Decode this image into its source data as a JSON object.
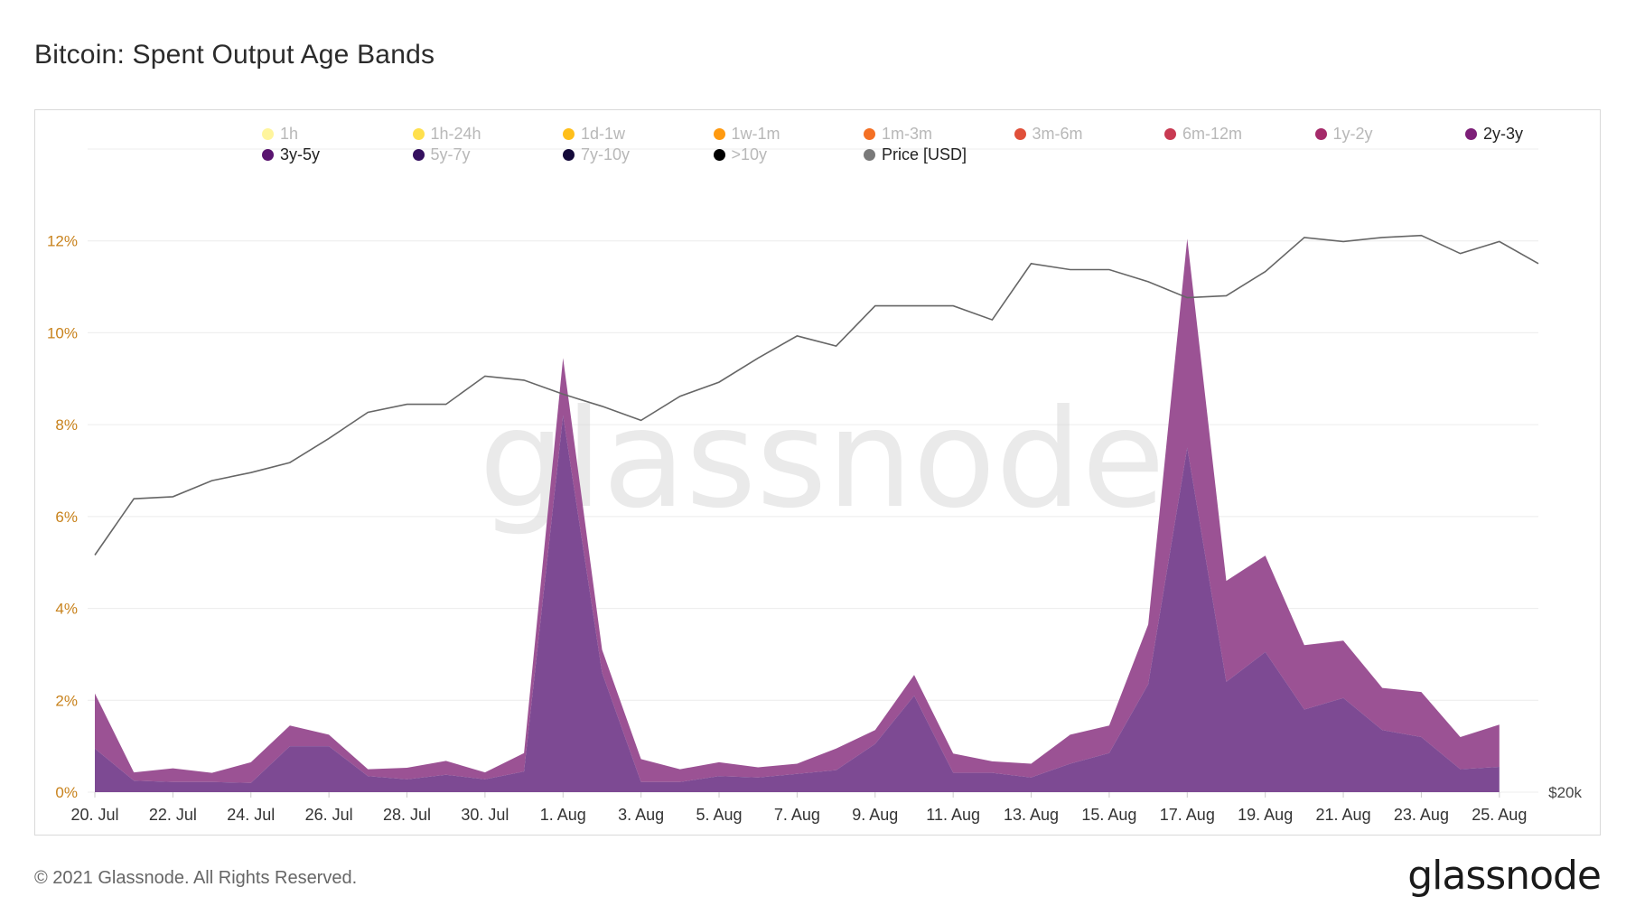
{
  "title": "Bitcoin: Spent Output Age Bands",
  "footer": "© 2021 Glassnode. All Rights Reserved.",
  "brand": "glassnode",
  "watermark": "glassnode",
  "legend": [
    {
      "label": "1h",
      "color": "#fff59d",
      "active": false
    },
    {
      "label": "1h-24h",
      "color": "#ffe04d",
      "active": false
    },
    {
      "label": "1d-1w",
      "color": "#ffbf1a",
      "active": false
    },
    {
      "label": "1w-1m",
      "color": "#ff9a10",
      "active": false
    },
    {
      "label": "1m-3m",
      "color": "#f47024",
      "active": false
    },
    {
      "label": "3m-6m",
      "color": "#e0503a",
      "active": false
    },
    {
      "label": "6m-12m",
      "color": "#c83a52",
      "active": false
    },
    {
      "label": "1y-2y",
      "color": "#a52a6a",
      "active": false
    },
    {
      "label": "2y-3y",
      "color": "#7d1f78",
      "active": true
    },
    {
      "label": "3y-5y",
      "color": "#5a1470",
      "active": true
    },
    {
      "label": "5y-7y",
      "color": "#35105f",
      "active": false
    },
    {
      "label": "7y-10y",
      "color": "#150a3a",
      "active": false
    },
    {
      "label": ">10y",
      "color": "#000000",
      "active": false
    },
    {
      "label": "Price [USD]",
      "color": "#7a7a7a",
      "active": true
    }
  ],
  "chart_data": {
    "type": "area",
    "x": [
      "20. Jul",
      "21. Jul",
      "22. Jul",
      "23. Jul",
      "24. Jul",
      "25. Jul",
      "26. Jul",
      "27. Jul",
      "28. Jul",
      "29. Jul",
      "30. Jul",
      "31. Jul",
      "1. Aug",
      "2. Aug",
      "3. Aug",
      "4. Aug",
      "5. Aug",
      "6. Aug",
      "7. Aug",
      "8. Aug",
      "9. Aug",
      "10. Aug",
      "11. Aug",
      "12. Aug",
      "13. Aug",
      "14. Aug",
      "15. Aug",
      "16. Aug",
      "17. Aug",
      "18. Aug",
      "19. Aug",
      "20. Aug",
      "21. Aug",
      "22. Aug",
      "23. Aug",
      "24. Aug",
      "25. Aug",
      "26. Aug"
    ],
    "xticks": [
      "20. Jul",
      "22. Jul",
      "24. Jul",
      "26. Jul",
      "28. Jul",
      "30. Jul",
      "1. Aug",
      "3. Aug",
      "5. Aug",
      "7. Aug",
      "9. Aug",
      "11. Aug",
      "13. Aug",
      "15. Aug",
      "17. Aug",
      "19. Aug",
      "21. Aug",
      "23. Aug",
      "25. Aug"
    ],
    "yticks": [
      "0%",
      "2%",
      "4%",
      "6%",
      "8%",
      "10%",
      "12%"
    ],
    "ylim": [
      0,
      14
    ],
    "y2_label": "$20k",
    "series": [
      {
        "name": "3y-5y",
        "color": "#7d4a93",
        "values": [
          0.95,
          0.25,
          0.22,
          0.22,
          0.2,
          1.0,
          1.0,
          0.35,
          0.28,
          0.38,
          0.28,
          0.45,
          8.2,
          2.6,
          0.22,
          0.22,
          0.35,
          0.32,
          0.4,
          0.48,
          1.05,
          2.1,
          0.42,
          0.42,
          0.32,
          0.62,
          0.85,
          2.35,
          7.5,
          2.4,
          3.05,
          1.8,
          2.05,
          1.35,
          1.2,
          0.5,
          0.55,
          null
        ]
      },
      {
        "name": "2y-3y",
        "color": "#9b5294",
        "values": [
          1.2,
          0.18,
          0.3,
          0.2,
          0.45,
          0.45,
          0.25,
          0.15,
          0.25,
          0.3,
          0.15,
          0.4,
          1.25,
          0.5,
          0.5,
          0.28,
          0.3,
          0.22,
          0.22,
          0.47,
          0.3,
          0.45,
          0.42,
          0.25,
          0.3,
          0.63,
          0.6,
          1.3,
          4.55,
          2.2,
          2.1,
          1.4,
          1.25,
          0.92,
          0.98,
          0.7,
          0.92,
          null
        ]
      },
      {
        "name": "Price [USD]",
        "color": "#666666",
        "axis": "right",
        "values": [
          31800,
          34600,
          34700,
          35500,
          35900,
          36400,
          37600,
          38900,
          39300,
          39300,
          40700,
          40500,
          39800,
          39200,
          38500,
          39700,
          40400,
          41600,
          42700,
          42200,
          44200,
          44200,
          44200,
          43500,
          46300,
          46000,
          46000,
          45400,
          44600,
          44700,
          45900,
          47600,
          47400,
          47600,
          47700,
          46800,
          47400,
          46300
        ]
      }
    ],
    "y2lim": [
      20000,
      52000
    ]
  }
}
